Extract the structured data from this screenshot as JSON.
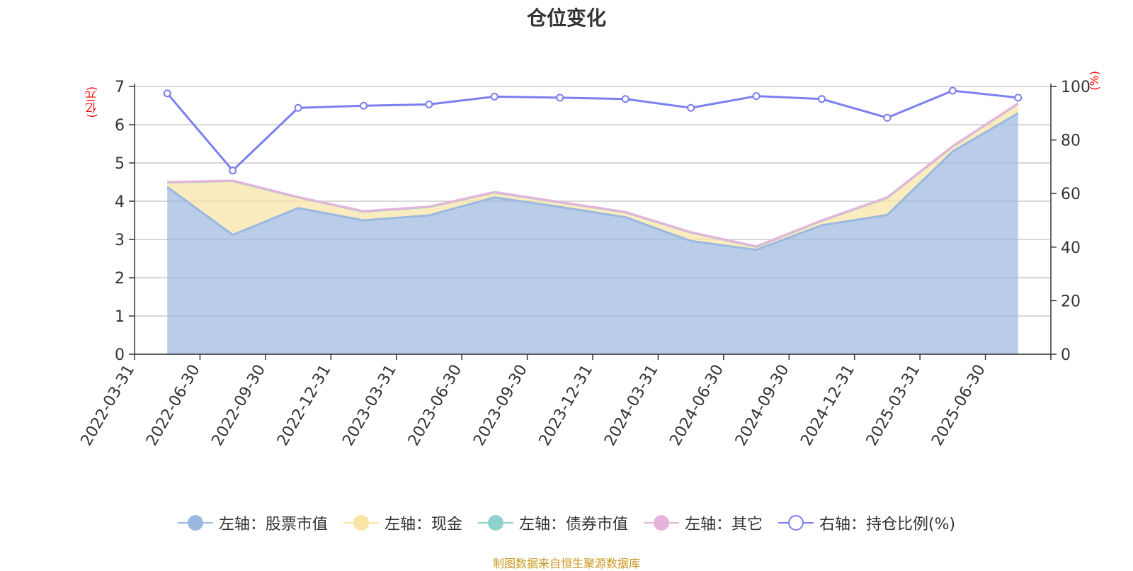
{
  "chart_data": {
    "type": "area",
    "title": "仓位变化",
    "left_axis_unit": "(亿元)",
    "right_axis_unit": "(%)",
    "categories": [
      "2022-03-31",
      "2022-06-30",
      "2022-09-30",
      "2022-12-31",
      "2023-03-31",
      "2023-06-30",
      "2023-09-30",
      "2023-12-31",
      "2024-03-31",
      "2024-06-30",
      "2024-09-30",
      "2024-12-31",
      "2025-03-31",
      "2025-06-30"
    ],
    "ylim_left": [
      0,
      7
    ],
    "yticks_left": [
      "0",
      "1",
      "2",
      "3",
      "4",
      "5",
      "6",
      "7"
    ],
    "ylim_right": [
      0,
      100
    ],
    "yticks_right": [
      "0",
      "20",
      "40",
      "60",
      "80",
      "100"
    ],
    "grid": true,
    "legend_position": "bottom",
    "series": [
      {
        "name": "左轴：股票市值",
        "axis": "left",
        "type": "area",
        "color": "#9bb8e0",
        "values": [
          4.37,
          3.12,
          3.82,
          3.5,
          3.63,
          4.1,
          3.85,
          3.58,
          2.96,
          2.73,
          3.37,
          3.64,
          5.3,
          6.3
        ]
      },
      {
        "name": "左轴：现金",
        "axis": "left",
        "type": "area",
        "color": "#f9e4a4",
        "values": [
          0.12,
          1.41,
          0.28,
          0.23,
          0.22,
          0.13,
          0.12,
          0.13,
          0.22,
          0.08,
          0.12,
          0.45,
          0.13,
          0.25
        ]
      },
      {
        "name": "左轴：债券市值",
        "axis": "left",
        "type": "area",
        "color": "#8fd1cf",
        "values": [
          0,
          0,
          0,
          0,
          0,
          0,
          0,
          0,
          0,
          0,
          0,
          0,
          0,
          0
        ]
      },
      {
        "name": "左轴：其它",
        "axis": "left",
        "type": "area",
        "color": "#e6b3db",
        "values": [
          0.01,
          0.01,
          0.01,
          0.01,
          0.01,
          0.01,
          0.01,
          0.01,
          0.01,
          0.01,
          0.01,
          0.01,
          0.01,
          0.01
        ]
      },
      {
        "name": "右轴：持仓比例(%)",
        "axis": "right",
        "type": "line",
        "color": "#7b7ff0",
        "values": [
          97.4,
          68.6,
          92.0,
          92.8,
          93.3,
          96.2,
          95.8,
          95.3,
          92.0,
          96.4,
          95.3,
          88.3,
          98.4,
          95.8
        ]
      }
    ]
  },
  "footer": "制图数据来自恒生聚源数据库"
}
